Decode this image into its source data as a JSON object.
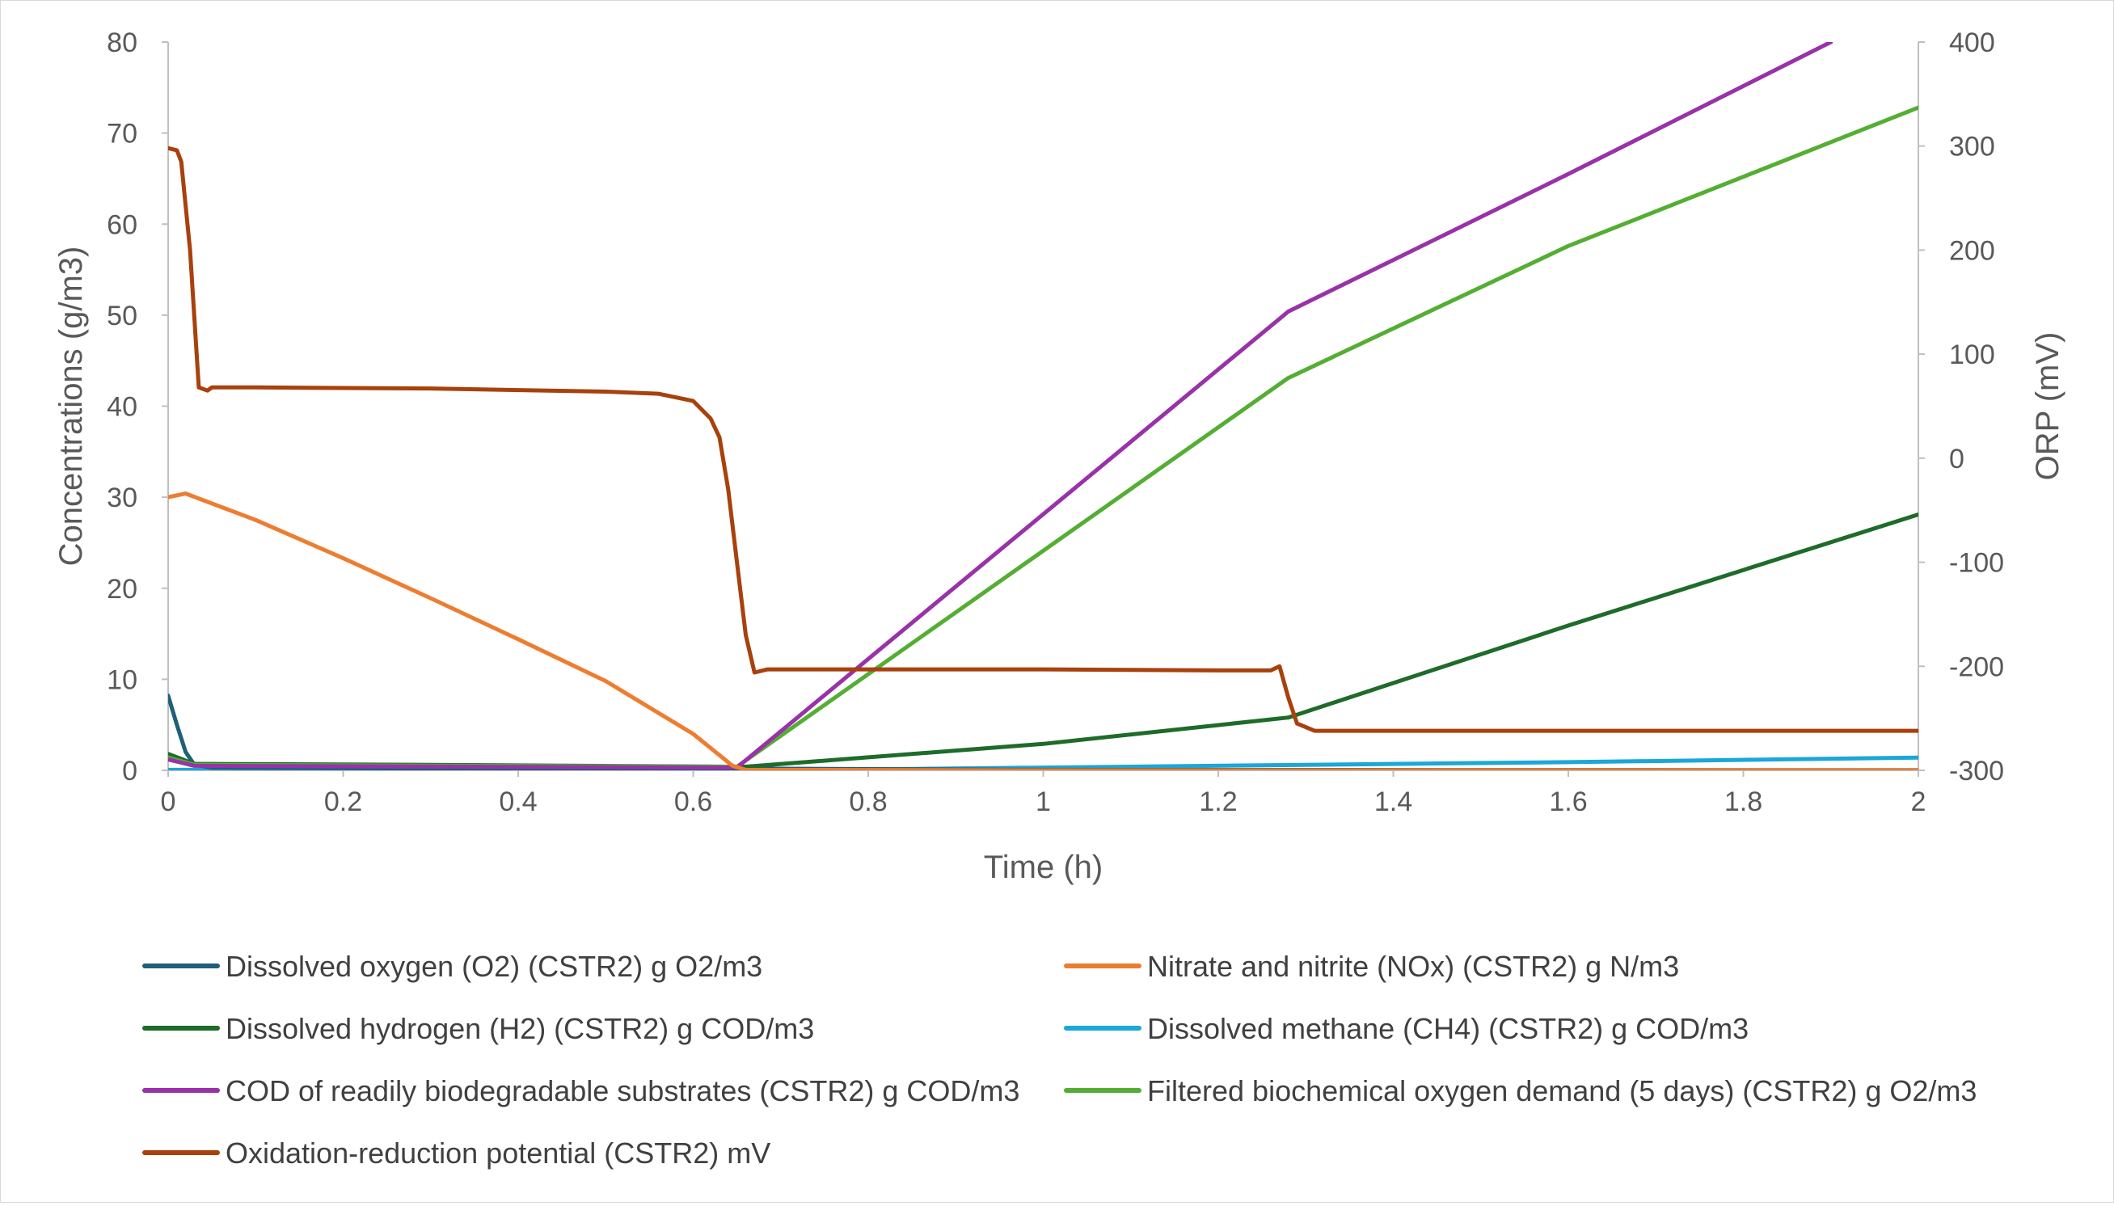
{
  "chart_data": {
    "type": "line",
    "title": "",
    "xlabel": "Time (h)",
    "ylabel": "Concentrations (g/m3)",
    "y2label": "ORP (mV)",
    "xlim": [
      0,
      2
    ],
    "ylim": [
      0,
      80
    ],
    "y2lim": [
      -300,
      400
    ],
    "xticks": [
      "0",
      "0.2",
      "0.4",
      "0.6",
      "0.8",
      "1",
      "1.2",
      "1.4",
      "1.6",
      "1.8",
      "2"
    ],
    "yticks": [
      "0",
      "10",
      "20",
      "30",
      "40",
      "50",
      "60",
      "70",
      "80"
    ],
    "y2ticks": [
      "400",
      "300",
      "200",
      "100",
      "0",
      "-100",
      "-200",
      "-300"
    ],
    "grid": false,
    "legend_position": "bottom",
    "series": [
      {
        "name": "Dissolved oxygen (O2) (CSTR2) g O2/m3",
        "color": "#1f5f7a",
        "axis": "left",
        "points": [
          [
            0,
            8.2
          ],
          [
            0.01,
            5.0
          ],
          [
            0.02,
            2.0
          ],
          [
            0.03,
            0.6
          ],
          [
            0.05,
            0.3
          ],
          [
            0.3,
            0.2
          ],
          [
            0.64,
            0.2
          ],
          [
            1,
            0.05
          ],
          [
            2,
            0.02
          ]
        ]
      },
      {
        "name": "Nitrate and nitrite (NOx) (CSTR2) g N/m3",
        "color": "#ed7d31",
        "axis": "left",
        "points": [
          [
            0,
            30.0
          ],
          [
            0.02,
            30.4
          ],
          [
            0.1,
            27.5
          ],
          [
            0.2,
            23.3
          ],
          [
            0.3,
            18.9
          ],
          [
            0.4,
            14.4
          ],
          [
            0.5,
            9.8
          ],
          [
            0.6,
            4.0
          ],
          [
            0.645,
            0.5
          ],
          [
            0.66,
            0.05
          ],
          [
            1,
            0.0
          ],
          [
            2,
            0.0
          ]
        ]
      },
      {
        "name": "Dissolved hydrogen (H2) (CSTR2) g COD/m3",
        "color": "#1e6b2a",
        "axis": "left",
        "points": [
          [
            0,
            1.8
          ],
          [
            0.03,
            0.7
          ],
          [
            0.3,
            0.6
          ],
          [
            0.64,
            0.4
          ],
          [
            0.66,
            0.4
          ],
          [
            1.0,
            2.9
          ],
          [
            1.28,
            5.8
          ],
          [
            1.6,
            15.9
          ],
          [
            2.0,
            28.1
          ]
        ]
      },
      {
        "name": "Dissolved methane (CH4) (CSTR2) g COD/m3",
        "color": "#1aa7d9",
        "axis": "left",
        "points": [
          [
            0,
            0.05
          ],
          [
            0.64,
            0.05
          ],
          [
            0.8,
            0.1
          ],
          [
            1.0,
            0.3
          ],
          [
            1.3,
            0.6
          ],
          [
            1.6,
            0.9
          ],
          [
            2.0,
            1.4
          ]
        ]
      },
      {
        "name": "COD of readily biodegradable substrates (CSTR2) g COD/m3",
        "color": "#9932a8",
        "axis": "left",
        "points": [
          [
            0,
            1.2
          ],
          [
            0.03,
            0.5
          ],
          [
            0.64,
            0.3
          ],
          [
            0.65,
            0.3
          ],
          [
            1.28,
            50.4
          ],
          [
            1.6,
            65.5
          ],
          [
            1.9,
            80.0
          ]
        ]
      },
      {
        "name": "Filtered biochemical oxygen demand (5 days) (CSTR2) g O2/m3",
        "color": "#54ae33",
        "axis": "left",
        "points": [
          [
            0,
            1.4
          ],
          [
            0.03,
            0.6
          ],
          [
            0.64,
            0.4
          ],
          [
            0.65,
            0.4
          ],
          [
            1.28,
            43.1
          ],
          [
            1.6,
            57.6
          ],
          [
            2.0,
            72.8
          ]
        ]
      },
      {
        "name": "Oxidation-reduction potential (CSTR2) mV",
        "color": "#a8410d",
        "axis": "right",
        "points": [
          [
            0,
            298
          ],
          [
            0.01,
            296
          ],
          [
            0.015,
            285
          ],
          [
            0.025,
            200
          ],
          [
            0.035,
            68
          ],
          [
            0.045,
            65
          ],
          [
            0.05,
            68
          ],
          [
            0.1,
            68
          ],
          [
            0.3,
            67
          ],
          [
            0.5,
            64
          ],
          [
            0.56,
            62
          ],
          [
            0.6,
            55
          ],
          [
            0.62,
            38
          ],
          [
            0.63,
            20
          ],
          [
            0.64,
            -30
          ],
          [
            0.65,
            -100
          ],
          [
            0.66,
            -170
          ],
          [
            0.67,
            -206
          ],
          [
            0.685,
            -203
          ],
          [
            0.7,
            -203
          ],
          [
            1.0,
            -203
          ],
          [
            1.2,
            -204
          ],
          [
            1.26,
            -204
          ],
          [
            1.27,
            -200
          ],
          [
            1.28,
            -230
          ],
          [
            1.29,
            -255
          ],
          [
            1.31,
            -262
          ],
          [
            1.5,
            -262
          ],
          [
            1.7,
            -262
          ],
          [
            2.0,
            -262
          ]
        ]
      }
    ]
  }
}
